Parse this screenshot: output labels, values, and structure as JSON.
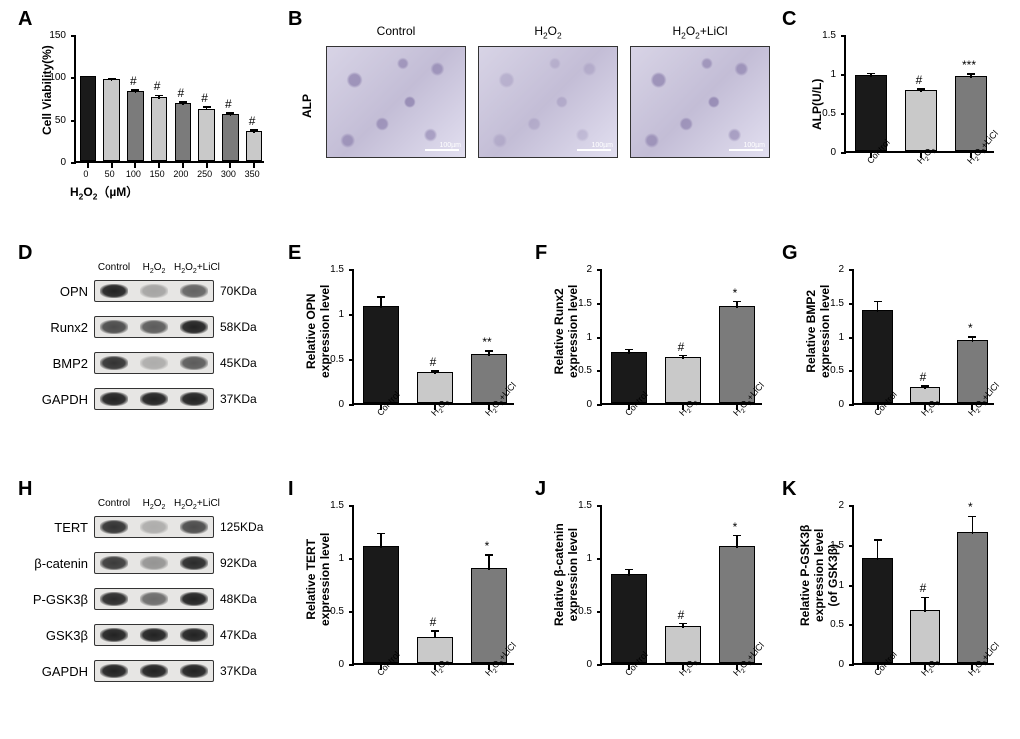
{
  "colors": {
    "bg": "#ffffff",
    "axis": "#000000",
    "text": "#000000",
    "bar_black": "#1a1a1a",
    "bar_light": "#c9c9c9",
    "bar_mid": "#7b7b7b"
  },
  "labels": {
    "panelA": "A",
    "panelB": "B",
    "panelC": "C",
    "panelD": "D",
    "panelE": "E",
    "panelF": "F",
    "panelG": "G",
    "panelH": "H",
    "panelI": "I",
    "panelJ": "J",
    "panelK": "K"
  },
  "groups3": [
    "Control",
    "H₂O₂",
    "H₂O₂+LiCl"
  ],
  "groups3_html": [
    "Control",
    "H<sub>2</sub>O<sub>2</sub>",
    "H<sub>2</sub>O<sub>2</sub>+LiCl"
  ],
  "A": {
    "type": "bar",
    "ylab": "Cell Viability(%)",
    "xlab_html": "H<sub>2</sub>O<sub>2</sub>（µM）",
    "categories": [
      "0",
      "50",
      "100",
      "150",
      "200",
      "250",
      "300",
      "350"
    ],
    "values": [
      100,
      97,
      83,
      76,
      68,
      62,
      55,
      35
    ],
    "errors": [
      0,
      2,
      3,
      4,
      4,
      4,
      4,
      4
    ],
    "sig": [
      "",
      "",
      "#",
      "#",
      "#",
      "#",
      "#",
      "#"
    ],
    "bar_colors": [
      "#1a1a1a",
      "#c9c9c9",
      "#7b7b7b",
      "#c9c9c9",
      "#7b7b7b",
      "#c9c9c9",
      "#7b7b7b",
      "#c9c9c9"
    ],
    "ylim": [
      0,
      150
    ],
    "ytick_step": 50,
    "bar_width": 0.7
  },
  "B": {
    "type": "microscopy",
    "row_label": "ALP",
    "titles_html": [
      "Control",
      "H<sub>2</sub>O<sub>2</sub>",
      "H<sub>2</sub>O<sub>2</sub>+LiCl"
    ],
    "scale_text": "100µm"
  },
  "C": {
    "type": "bar",
    "ylab": "ALP(U/L)",
    "values": [
      0.98,
      0.78,
      0.96
    ],
    "errors": [
      0.04,
      0.04,
      0.05
    ],
    "sig": [
      "",
      "#",
      "***"
    ],
    "bar_colors": [
      "#1a1a1a",
      "#c9c9c9",
      "#7b7b7b"
    ],
    "ylim": [
      0,
      1.5
    ],
    "ytick_step": 0.5,
    "bar_width": 0.65
  },
  "D": {
    "type": "western",
    "header_html": [
      "Control",
      "H<sub>2</sub>O<sub>2</sub>",
      "H<sub>2</sub>O<sub>2</sub>+LiCl"
    ],
    "rows": [
      {
        "name": "OPN",
        "size": "70KDa",
        "bands": [
          0.95,
          0.15,
          0.55
        ]
      },
      {
        "name": "Runx2",
        "size": "58KDa",
        "bands": [
          0.7,
          0.6,
          0.95
        ]
      },
      {
        "name": "BMP2",
        "size": "45KDa",
        "bands": [
          0.85,
          0.1,
          0.6
        ]
      },
      {
        "name": "GAPDH",
        "size": "37KDa",
        "bands": [
          0.95,
          0.95,
          0.95
        ]
      }
    ]
  },
  "E": {
    "ylab": "Relative OPN\nexpression level",
    "values": [
      1.08,
      0.34,
      0.55
    ],
    "errors": [
      0.12,
      0.04,
      0.05
    ],
    "sig": [
      "",
      "#",
      "**"
    ],
    "bar_colors": [
      "#1a1a1a",
      "#c9c9c9",
      "#7b7b7b"
    ],
    "ylim": [
      0,
      1.5
    ],
    "ytick_step": 0.5
  },
  "F": {
    "ylab": "Relative Runx2\nexpression level",
    "values": [
      0.76,
      0.68,
      1.43
    ],
    "errors": [
      0.06,
      0.05,
      0.1
    ],
    "sig": [
      "",
      "#",
      "*"
    ],
    "bar_colors": [
      "#1a1a1a",
      "#c9c9c9",
      "#7b7b7b"
    ],
    "ylim": [
      0,
      2.0
    ],
    "ytick_step": 0.5
  },
  "G": {
    "ylab": "Relative BMP2\nexpression level",
    "values": [
      1.38,
      0.23,
      0.93
    ],
    "errors": [
      0.15,
      0.05,
      0.08
    ],
    "sig": [
      "",
      "#",
      "*"
    ],
    "bar_colors": [
      "#1a1a1a",
      "#c9c9c9",
      "#7b7b7b"
    ],
    "ylim": [
      0,
      2.0
    ],
    "ytick_step": 0.5
  },
  "H": {
    "type": "western",
    "header_html": [
      "Control",
      "H<sub>2</sub>O<sub>2</sub>",
      "H<sub>2</sub>O<sub>2</sub>+LiCl"
    ],
    "rows": [
      {
        "name": "TERT",
        "size": "125KDa",
        "bands": [
          0.85,
          0.1,
          0.7
        ]
      },
      {
        "name": "β-catenin",
        "size": "92KDa",
        "bands": [
          0.8,
          0.25,
          0.9
        ]
      },
      {
        "name": "P-GSK3β",
        "size": "48KDa",
        "bands": [
          0.9,
          0.5,
          0.95
        ]
      },
      {
        "name": "GSK3β",
        "size": "47KDa",
        "bands": [
          0.95,
          0.95,
          0.95
        ]
      },
      {
        "name": "GAPDH",
        "size": "37KDa",
        "bands": [
          0.95,
          0.95,
          0.95
        ]
      }
    ]
  },
  "I": {
    "ylab": "Relative TERT\nexpression level",
    "values": [
      1.1,
      0.25,
      0.9
    ],
    "errors": [
      0.14,
      0.07,
      0.14
    ],
    "sig": [
      "",
      "#",
      "*"
    ],
    "bar_colors": [
      "#1a1a1a",
      "#c9c9c9",
      "#7b7b7b"
    ],
    "ylim": [
      0,
      1.5
    ],
    "ytick_step": 0.5
  },
  "J": {
    "ylab": "Relative β-catenin\nexpression level",
    "values": [
      0.84,
      0.35,
      1.1
    ],
    "errors": [
      0.06,
      0.04,
      0.12
    ],
    "sig": [
      "",
      "#",
      "*"
    ],
    "bar_colors": [
      "#1a1a1a",
      "#c9c9c9",
      "#7b7b7b"
    ],
    "ylim": [
      0,
      1.5
    ],
    "ytick_step": 0.5
  },
  "K": {
    "ylab": "Relative P-GSK3β\nexpression level\n(of GSK3β)",
    "values": [
      1.32,
      0.67,
      1.65
    ],
    "errors": [
      0.25,
      0.18,
      0.22
    ],
    "sig": [
      "",
      "#",
      "*"
    ],
    "bar_colors": [
      "#1a1a1a",
      "#c9c9c9",
      "#7b7b7b"
    ],
    "ylim": [
      0,
      2.0
    ],
    "ytick_step": 0.5
  }
}
